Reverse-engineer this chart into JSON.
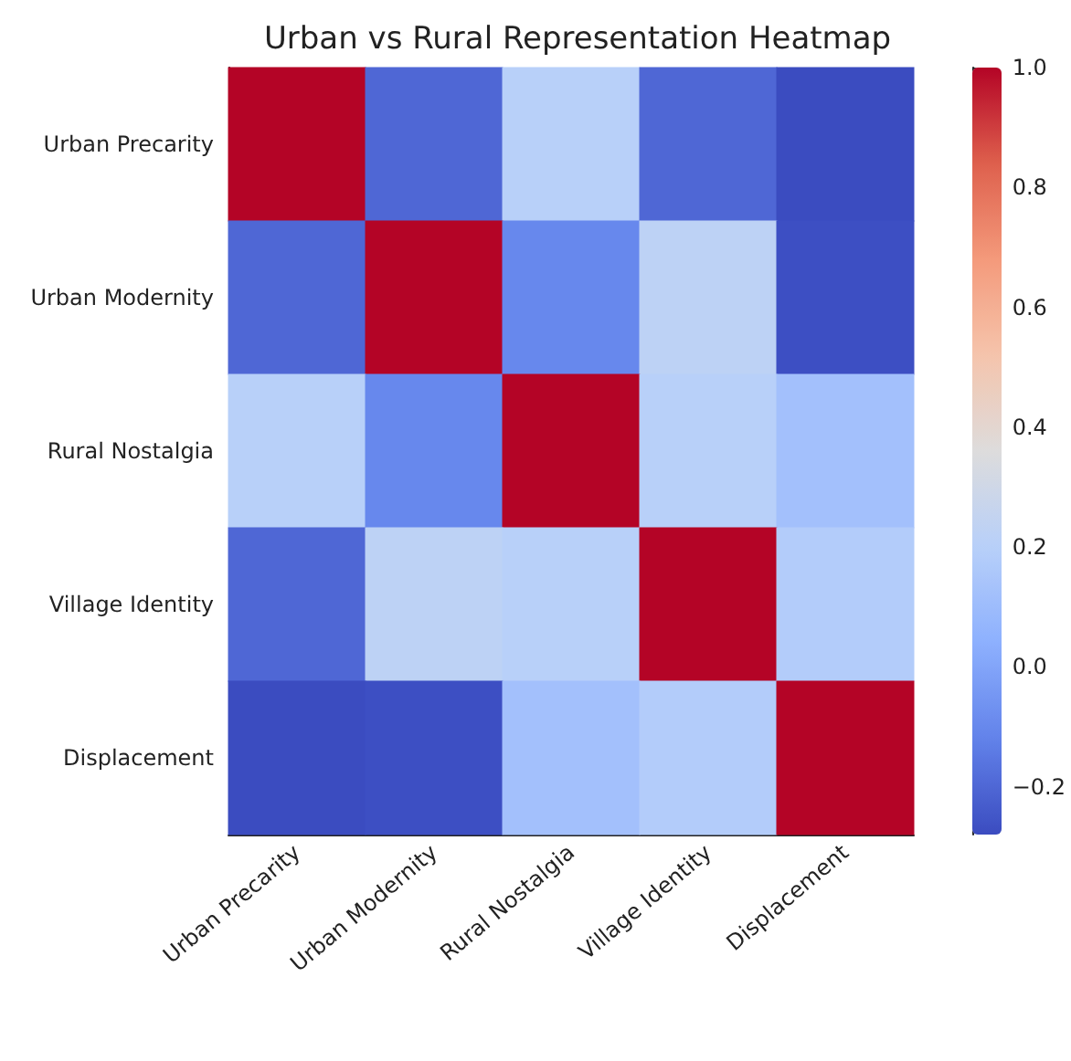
{
  "chart_data": {
    "type": "heatmap",
    "title": "Urban vs Rural Representation Heatmap",
    "categories": [
      "Urban Precarity",
      "Urban Modernity",
      "Rural Nostalgia",
      "Village Identity",
      "Displacement"
    ],
    "y_categories": [
      "Urban Precarity",
      "Urban Modernity",
      "Rural Nostalgia",
      "Village Identity",
      "Displacement"
    ],
    "cells": [
      [
        1.0,
        -0.2,
        0.2,
        -0.2,
        -0.28
      ],
      [
        -0.2,
        1.0,
        -0.1,
        0.22,
        -0.27
      ],
      [
        0.2,
        -0.1,
        1.0,
        0.2,
        0.12
      ],
      [
        -0.2,
        0.22,
        0.2,
        1.0,
        0.18
      ],
      [
        -0.28,
        -0.27,
        0.12,
        0.18,
        1.0
      ]
    ],
    "clim": [
      -0.28,
      1.0
    ],
    "cticks": [
      {
        "value": -0.2,
        "label": "−0.2"
      },
      {
        "value": 0,
        "label": "0.0"
      },
      {
        "value": 0.2,
        "label": "0.2"
      },
      {
        "value": 0.4,
        "label": "0.4"
      },
      {
        "value": 0.6,
        "label": "0.6"
      },
      {
        "value": 0.8,
        "label": "0.8"
      },
      {
        "value": 1,
        "label": "1.0"
      }
    ]
  }
}
